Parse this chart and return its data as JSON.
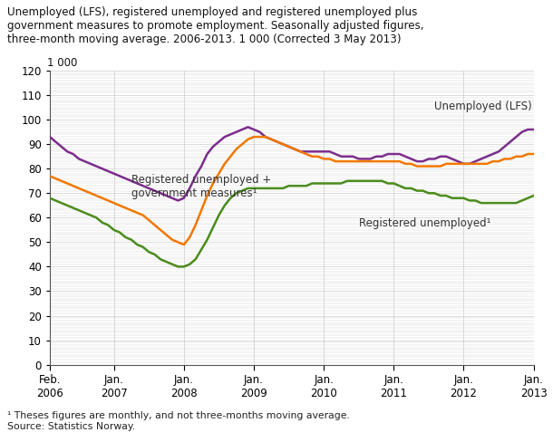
{
  "title_line1": "Unemployed (LFS), registered unemployed and registered unemployed plus",
  "title_line2": "government measures to promote employment. Seasonally adjusted figures,",
  "title_line3": "three-month moving average. 2006-2013. 1 000 (Corrected 3 May 2013)",
  "unit_label": "1 000",
  "footnote": "¹ Theses figures are monthly, and not three-months moving average.\nSource: Statistics Norway.",
  "ylim": [
    0,
    120
  ],
  "xtick_labels": [
    "Feb.\n2006",
    "Jan.\n2007",
    "Jan.\n2008",
    "Jan.\n2009",
    "Jan.\n2010",
    "Jan.\n2011",
    "Jan.\n2012",
    "Jan.\n2013"
  ],
  "xtick_positions": [
    0,
    11,
    23,
    35,
    47,
    59,
    71,
    83
  ],
  "lfs_color": "#7b2d8b",
  "reg_plus_color": "#f07800",
  "reg_color": "#4a8c1c",
  "lfs_label": "Unemployed (LFS)",
  "reg_plus_label": "Registered unemployed +\ngovernment measures¹",
  "reg_label": "Registered unemployed¹",
  "background_color": "#ffffff",
  "grid_color": "#cccccc",
  "lfs_data": [
    93,
    91,
    89,
    87,
    86,
    84,
    83,
    82,
    81,
    80,
    79,
    78,
    77,
    76,
    75,
    74,
    73,
    72,
    71,
    70,
    69,
    68,
    67,
    68,
    72,
    77,
    81,
    86,
    89,
    91,
    93,
    94,
    95,
    96,
    97,
    96,
    95,
    93,
    92,
    91,
    90,
    89,
    88,
    87,
    87,
    87,
    87,
    87,
    87,
    86,
    85,
    85,
    85,
    84,
    84,
    84,
    85,
    85,
    86,
    86,
    86,
    85,
    84,
    83,
    83,
    84,
    84,
    85,
    85,
    84,
    83,
    82,
    82,
    83,
    84,
    85,
    86,
    87,
    89,
    91,
    93,
    95,
    96,
    96
  ],
  "reg_plus_data": [
    77,
    76,
    75,
    74,
    73,
    72,
    71,
    70,
    69,
    68,
    67,
    66,
    65,
    64,
    63,
    62,
    61,
    59,
    57,
    55,
    53,
    51,
    50,
    49,
    52,
    57,
    63,
    69,
    74,
    78,
    82,
    85,
    88,
    90,
    92,
    93,
    93,
    93,
    92,
    91,
    90,
    89,
    88,
    87,
    86,
    85,
    85,
    84,
    84,
    83,
    83,
    83,
    83,
    83,
    83,
    83,
    83,
    83,
    83,
    83,
    83,
    82,
    82,
    81,
    81,
    81,
    81,
    81,
    82,
    82,
    82,
    82,
    82,
    82,
    82,
    82,
    83,
    83,
    84,
    84,
    85,
    85,
    86,
    86
  ],
  "reg_data": [
    68,
    67,
    66,
    65,
    64,
    63,
    62,
    61,
    60,
    58,
    57,
    55,
    54,
    52,
    51,
    49,
    48,
    46,
    45,
    43,
    42,
    41,
    40,
    40,
    41,
    43,
    47,
    51,
    56,
    61,
    65,
    68,
    70,
    71,
    72,
    72,
    72,
    72,
    72,
    72,
    72,
    73,
    73,
    73,
    73,
    74,
    74,
    74,
    74,
    74,
    74,
    75,
    75,
    75,
    75,
    75,
    75,
    75,
    74,
    74,
    73,
    72,
    72,
    71,
    71,
    70,
    70,
    69,
    69,
    68,
    68,
    68,
    67,
    67,
    66,
    66,
    66,
    66,
    66,
    66,
    66,
    67,
    68,
    69
  ]
}
